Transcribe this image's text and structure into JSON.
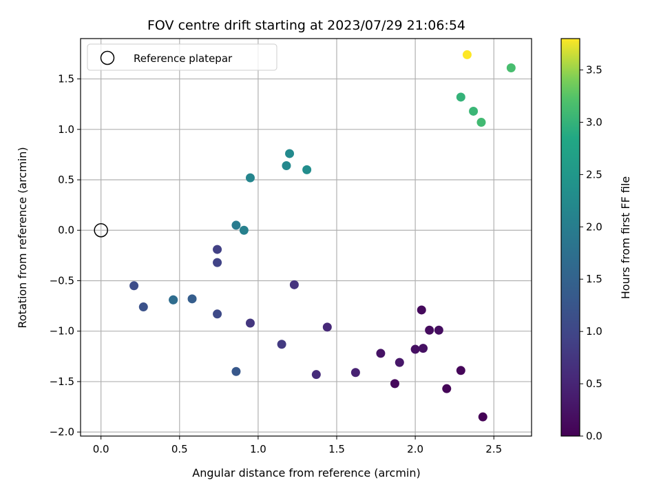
{
  "chart_data": {
    "type": "scatter",
    "title": "FOV centre drift starting at 2023/07/29 21:06:54",
    "xlabel": "Angular distance from reference (arcmin)",
    "ylabel": "Rotation from reference (arcmin)",
    "xlim": [
      -0.13,
      2.74
    ],
    "ylim": [
      -2.04,
      1.9
    ],
    "xticks": [
      0.0,
      0.5,
      1.0,
      1.5,
      2.0,
      2.5
    ],
    "xtick_labels": [
      "0.0",
      "0.5",
      "1.0",
      "1.5",
      "2.0",
      "2.5"
    ],
    "yticks": [
      -2.0,
      -1.5,
      -1.0,
      -0.5,
      0.0,
      0.5,
      1.0,
      1.5
    ],
    "ytick_labels": [
      "−2.0",
      "−1.5",
      "−1.0",
      "−0.5",
      "0.0",
      "0.5",
      "1.0",
      "1.5"
    ],
    "grid": true,
    "legend": {
      "position": "upper-left",
      "label": "Reference platepar",
      "marker": "open-circle"
    },
    "reference_point": {
      "x": 0.0,
      "y": 0.0
    },
    "colorbar": {
      "label": "Hours from first FF file",
      "colormap": "viridis",
      "range": [
        0.0,
        3.8
      ],
      "ticks": [
        0.0,
        0.5,
        1.0,
        1.5,
        2.0,
        2.5,
        3.0,
        3.5
      ],
      "tick_labels": [
        "0.0",
        "0.5",
        "1.0",
        "1.5",
        "2.0",
        "2.5",
        "3.0",
        "3.5"
      ]
    },
    "points": [
      {
        "x": 2.43,
        "y": -1.85,
        "hours": 0.02
      },
      {
        "x": 2.2,
        "y": -1.57,
        "hours": 0.05
      },
      {
        "x": 2.29,
        "y": -1.39,
        "hours": 0.07
      },
      {
        "x": 1.87,
        "y": -1.52,
        "hours": 0.1
      },
      {
        "x": 2.04,
        "y": -0.79,
        "hours": 0.12
      },
      {
        "x": 2.09,
        "y": -0.99,
        "hours": 0.15
      },
      {
        "x": 2.15,
        "y": -0.99,
        "hours": 0.17
      },
      {
        "x": 2.0,
        "y": -1.18,
        "hours": 0.2
      },
      {
        "x": 2.05,
        "y": -1.17,
        "hours": 0.22
      },
      {
        "x": 1.78,
        "y": -1.22,
        "hours": 0.25
      },
      {
        "x": 1.9,
        "y": -1.31,
        "hours": 0.3
      },
      {
        "x": 1.62,
        "y": -1.41,
        "hours": 0.45
      },
      {
        "x": 1.44,
        "y": -0.96,
        "hours": 0.55
      },
      {
        "x": 1.37,
        "y": -1.43,
        "hours": 0.6
      },
      {
        "x": 1.23,
        "y": -0.54,
        "hours": 0.7
      },
      {
        "x": 0.95,
        "y": -0.92,
        "hours": 0.75
      },
      {
        "x": 1.15,
        "y": -1.13,
        "hours": 0.8
      },
      {
        "x": 0.74,
        "y": -0.19,
        "hours": 0.9
      },
      {
        "x": 0.74,
        "y": -0.32,
        "hours": 0.95
      },
      {
        "x": 0.74,
        "y": -0.83,
        "hours": 1.05
      },
      {
        "x": 0.21,
        "y": -0.55,
        "hours": 1.1
      },
      {
        "x": 0.27,
        "y": -0.76,
        "hours": 1.2
      },
      {
        "x": 0.86,
        "y": -1.4,
        "hours": 1.3
      },
      {
        "x": 0.58,
        "y": -0.68,
        "hours": 1.4
      },
      {
        "x": 0.46,
        "y": -0.69,
        "hours": 1.55
      },
      {
        "x": 0.46,
        "y": -0.69,
        "hours": 1.7
      },
      {
        "x": 0.86,
        "y": 0.05,
        "hours": 1.95
      },
      {
        "x": 0.91,
        "y": -0.0,
        "hours": 2.05
      },
      {
        "x": 0.95,
        "y": 0.52,
        "hours": 2.15
      },
      {
        "x": 1.18,
        "y": 0.64,
        "hours": 2.2
      },
      {
        "x": 1.2,
        "y": 0.76,
        "hours": 2.25
      },
      {
        "x": 1.31,
        "y": 0.6,
        "hours": 2.3
      },
      {
        "x": 2.29,
        "y": 1.32,
        "hours": 3.0
      },
      {
        "x": 2.37,
        "y": 1.18,
        "hours": 3.05
      },
      {
        "x": 2.42,
        "y": 1.07,
        "hours": 3.1
      },
      {
        "x": 2.61,
        "y": 1.61,
        "hours": 3.15
      },
      {
        "x": 2.33,
        "y": 1.74,
        "hours": 3.8
      }
    ]
  }
}
